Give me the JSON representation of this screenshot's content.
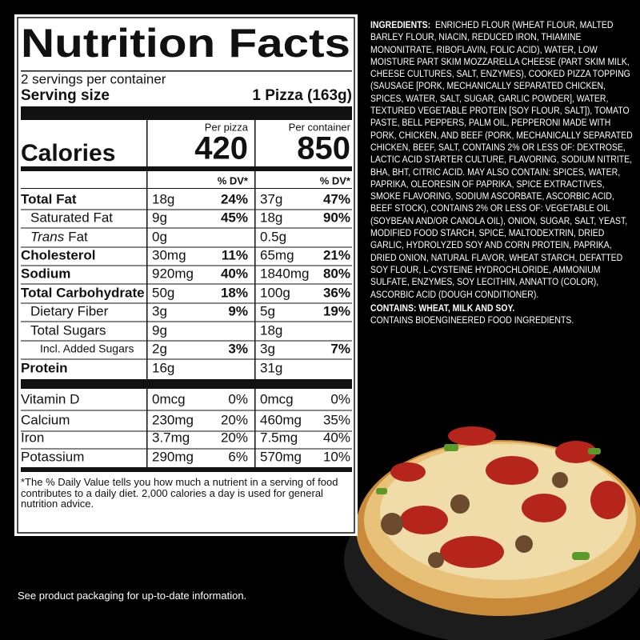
{
  "label": {
    "title": "Nutrition Facts",
    "servings": "2 servings per container",
    "serving_size_label": "Serving size",
    "serving_size": "1 Pizza (163g)",
    "col_headers": [
      "Per pizza",
      "Per container"
    ],
    "calories_label": "Calories",
    "calories": [
      420,
      850
    ],
    "dv_headers": [
      "% DV*",
      "% DV*"
    ],
    "rows": [
      {
        "name": "Total Fat",
        "amount": "18g",
        "dv": "24%",
        "c_amount": "37g",
        "c_dv": "47%"
      },
      {
        "name": "Saturated Fat",
        "amount": "9g",
        "dv": "45%",
        "c_amount": "18g",
        "c_dv": "90%"
      },
      {
        "name_prefix": "Trans",
        "name": "Fat",
        "amount": "0g",
        "c_amount": "0.5g"
      },
      {
        "name": "Cholesterol",
        "amount": "30mg",
        "dv": "11%",
        "c_amount": "65mg",
        "c_dv": "21%"
      },
      {
        "name": "Sodium",
        "amount": "920mg",
        "dv": "40%",
        "c_amount": "1840mg",
        "c_dv": "80%"
      },
      {
        "name": "Total Carbohydrate",
        "amount": "50g",
        "dv": "18%",
        "c_amount": "100g",
        "c_dv": "36%"
      },
      {
        "name": "Dietary Fiber",
        "amount": "3g",
        "dv": "9%",
        "c_amount": "5g",
        "c_dv": "19%"
      },
      {
        "name": "Total Sugars",
        "amount": "9g",
        "c_amount": "18g"
      },
      {
        "name": "Incl. Added Sugars",
        "amount": "2g",
        "dv": "3%",
        "c_amount": "3g",
        "c_dv": "7%"
      },
      {
        "name": "Protein",
        "amount": "16g",
        "c_amount": "31g"
      }
    ],
    "vitamins": [
      {
        "name": "Vitamin D",
        "amount": "0mcg",
        "dv": "0%",
        "c_amount": "0mcg",
        "c_dv": "0%"
      },
      {
        "name": "Calcium",
        "amount": "230mg",
        "dv": "20%",
        "c_amount": "460mg",
        "c_dv": "35%"
      },
      {
        "name": "Iron",
        "amount": "3.7mg",
        "dv": "20%",
        "c_amount": "7.5mg",
        "c_dv": "40%"
      },
      {
        "name": "Potassium",
        "amount": "290mg",
        "dv": "6%",
        "c_amount": "570mg",
        "c_dv": "10%"
      }
    ],
    "footnote": "*The % Daily Value tells you how much a nutrient in a serving of food contributes to a daily diet. 2,000 calories a day is used for general nutrition advice."
  },
  "ingredients": {
    "heading": "INGREDIENTS:",
    "text": "ENRICHED FLOUR (WHEAT FLOUR, MALTED BARLEY FLOUR, NIACIN, REDUCED IRON, THIAMINE MONONITRATE, RIBOFLAVIN, FOLIC ACID), WATER, LOW MOISTURE PART SKIM MOZZARELLA CHEESE (PART SKIM MILK, CHEESE CULTURES, SALT, ENZYMES), COOKED PIZZA TOPPING (SAUSAGE [PORK, MECHANICALLY SEPARATED CHICKEN, SPICES, WATER, SALT, SUGAR, GARLIC POWDER], WATER, TEXTURED VEGETABLE PROTEIN [SOY FLOUR, SALT]), TOMATO PASTE, BELL PEPPERS, PALM OIL, PEPPERONI MADE WITH PORK, CHICKEN, AND BEEF (PORK, MECHANICALLY SEPARATED CHICKEN, BEEF, SALT, CONTAINS 2% OR LESS OF: DEXTROSE, LACTIC ACID STARTER CULTURE, FLAVORING, SODIUM NITRITE, BHA, BHT, CITRIC ACID. MAY ALSO CONTAIN: SPICES, WATER, PAPRIKA, OLEORESIN OF PAPRIKA, SPICE EXTRACTIVES, SMOKE FLAVORING, SODIUM ASCORBATE, ASCORBIC ACID, BEEF STOCK), CONTAINS 2% OR LESS OF: VEGETABLE OIL (SOYBEAN AND/OR CANOLA OIL), ONION, SUGAR, SALT, YEAST, MODIFIED FOOD STARCH, SPICE, MALTODEXTRIN, DRIED GARLIC, HYDROLYZED SOY AND CORN PROTEIN, PAPRIKA, DRIED ONION, NATURAL FLAVOR, WHEAT STARCH, DEFATTED SOY FLOUR, L-CYSTEINE HYDROCHLORIDE, AMMONIUM SULFATE, ENZYMES, SOY LECITHIN, ANNATTO (COLOR), ASCORBIC ACID (DOUGH CONDITIONER).",
    "contains": "CONTAINS: WHEAT, MILK AND SOY.",
    "bioengineered": "CONTAINS BIOENGINEERED FOOD INGREDIENTS."
  },
  "footer": "See product packaging for up-to-date information."
}
